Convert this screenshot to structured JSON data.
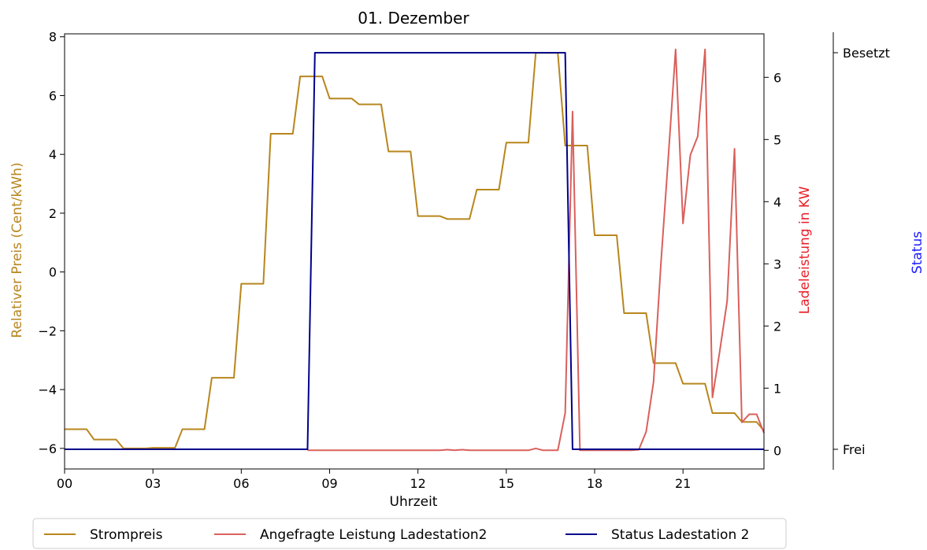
{
  "chart_data": {
    "type": "line",
    "title": "01. Dezember",
    "xlabel": "Uhrzeit",
    "x_tick_labels": [
      "00",
      "03",
      "06",
      "09",
      "12",
      "15",
      "18",
      "21"
    ],
    "x_ticks_hours": [
      0,
      3,
      6,
      9,
      12,
      15,
      18,
      21
    ],
    "xlim_hours": [
      0,
      23.75
    ],
    "y_left": {
      "label": "Relativer Preis (Cent/kWh)",
      "color": "#b8861e",
      "ticks": [
        -6,
        -4,
        -2,
        0,
        2,
        4,
        6,
        8
      ],
      "ylim": [
        -6.7,
        8.1
      ]
    },
    "y_right": {
      "label": "Ladeleistung in KW",
      "color": "#e8202a",
      "ticks": [
        0,
        1,
        2,
        3,
        4,
        5,
        6
      ],
      "ylim": [
        -0.3,
        6.7
      ]
    },
    "y_status": {
      "label": "Status",
      "color": "#1a1aff",
      "tick_labels": [
        "Frei",
        "Besetzt"
      ]
    },
    "series": [
      {
        "name": "Strompreis",
        "axis": "left",
        "color": "#b8861e",
        "points": [
          [
            0,
            -5.35
          ],
          [
            0.75,
            -5.35
          ],
          [
            1,
            -5.7
          ],
          [
            1.75,
            -5.7
          ],
          [
            2,
            -6
          ],
          [
            2.75,
            -6
          ],
          [
            3,
            -5.98
          ],
          [
            3.75,
            -5.98
          ],
          [
            4,
            -5.35
          ],
          [
            4.75,
            -5.35
          ],
          [
            5,
            -3.6
          ],
          [
            5.75,
            -3.6
          ],
          [
            6,
            -0.4
          ],
          [
            6.75,
            -0.4
          ],
          [
            7,
            4.7
          ],
          [
            7.75,
            4.7
          ],
          [
            8,
            6.65
          ],
          [
            8.75,
            6.65
          ],
          [
            9,
            5.9
          ],
          [
            9.75,
            5.9
          ],
          [
            10,
            5.7
          ],
          [
            10.75,
            5.7
          ],
          [
            11,
            4.1
          ],
          [
            11.75,
            4.1
          ],
          [
            12,
            1.9
          ],
          [
            12.75,
            1.9
          ],
          [
            13,
            1.8
          ],
          [
            13.75,
            1.8
          ],
          [
            14,
            2.8
          ],
          [
            14.75,
            2.8
          ],
          [
            15,
            4.4
          ],
          [
            15.75,
            4.4
          ],
          [
            16,
            7.45
          ],
          [
            16.75,
            7.45
          ],
          [
            17,
            4.3
          ],
          [
            17.75,
            4.3
          ],
          [
            18,
            1.25
          ],
          [
            18.75,
            1.25
          ],
          [
            19,
            -1.4
          ],
          [
            19.75,
            -1.4
          ],
          [
            20,
            -3.1
          ],
          [
            20.75,
            -3.1
          ],
          [
            21,
            -3.8
          ],
          [
            21.75,
            -3.8
          ],
          [
            22,
            -4.8
          ],
          [
            22.75,
            -4.8
          ],
          [
            23,
            -5.1
          ],
          [
            23.5,
            -5.1
          ],
          [
            23.75,
            -5.4
          ]
        ]
      },
      {
        "name": "Angefragte Leistung Ladestation2",
        "axis": "right",
        "color": "#d9605c",
        "points": [
          [
            8.25,
            0
          ],
          [
            12.75,
            0
          ],
          [
            13,
            0.01
          ],
          [
            13.25,
            0
          ],
          [
            13.5,
            0.01
          ],
          [
            13.75,
            0
          ],
          [
            15.75,
            0
          ],
          [
            16,
            0.03
          ],
          [
            16.25,
            0
          ],
          [
            16.75,
            0
          ],
          [
            17,
            0.6
          ],
          [
            17.25,
            5.45
          ],
          [
            17.5,
            0
          ],
          [
            19.25,
            0
          ],
          [
            19.5,
            0.01
          ],
          [
            19.75,
            0.3
          ],
          [
            20,
            1.1
          ],
          [
            20.25,
            3
          ],
          [
            20.5,
            4.7
          ],
          [
            20.75,
            6.45
          ],
          [
            21,
            3.65
          ],
          [
            21.25,
            4.75
          ],
          [
            21.5,
            5.05
          ],
          [
            21.75,
            6.45
          ],
          [
            22,
            0.85
          ],
          [
            22.25,
            1.6
          ],
          [
            22.5,
            2.4
          ],
          [
            22.75,
            4.85
          ],
          [
            23,
            0.45
          ],
          [
            23.25,
            0.58
          ],
          [
            23.5,
            0.58
          ],
          [
            23.75,
            0.28
          ]
        ]
      },
      {
        "name": "Status Ladestation 2",
        "axis": "status",
        "color": "#00008b",
        "points": [
          [
            0,
            0
          ],
          [
            8.25,
            0
          ],
          [
            8.5,
            1
          ],
          [
            17,
            1
          ],
          [
            17.25,
            0
          ],
          [
            23.75,
            0
          ]
        ]
      }
    ],
    "legend": {
      "placement": "bottom-center"
    }
  }
}
